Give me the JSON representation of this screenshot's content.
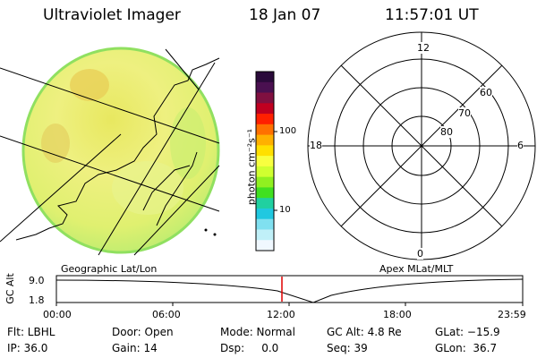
{
  "header": {
    "title": "Ultraviolet Imager",
    "date": "18 Jan 07",
    "time": "11:57:01 UT"
  },
  "image_panel": {
    "label": "Geographic Lat/Lon"
  },
  "colorbar": {
    "unit_label": "photon cm⁻²s⁻¹",
    "ticks": [
      "100",
      "10"
    ],
    "colors": [
      "#2a0a3a",
      "#4a1050",
      "#801040",
      "#c00020",
      "#ff2000",
      "#ff7000",
      "#ffb000",
      "#ffe000",
      "#f8ff40",
      "#d0ff30",
      "#90f020",
      "#40e020",
      "#20d0a0",
      "#20c8e0",
      "#80e0f0",
      "#c0f0f8",
      "#f0f8ff"
    ]
  },
  "polar_plot": {
    "label": "Apex MLat/MLT",
    "mlt_labels": {
      "top": "12",
      "left": "18",
      "right": "6",
      "bottom": "0"
    },
    "lat_labels": [
      "60",
      "70",
      "80"
    ]
  },
  "altitude_plot": {
    "ylabel": "GC Alt",
    "yticks": [
      "9.0",
      "1.8"
    ],
    "xticks": [
      "00:00",
      "06:00",
      "12:00",
      "18:00",
      "23:59"
    ],
    "marker_color": "#e00000"
  },
  "info": {
    "filter": "Flt: LBHL",
    "ip": "IP: 36.0",
    "door": "Door: Open",
    "gain": "Gain: 14",
    "mode": "Mode: Normal",
    "dsp": "Dsp:     0.0",
    "gc_alt": "GC Alt: 4.8 Re",
    "seq": "Seq: 39",
    "glat": "GLat: −15.9",
    "glon": "GLon:  36.7"
  }
}
